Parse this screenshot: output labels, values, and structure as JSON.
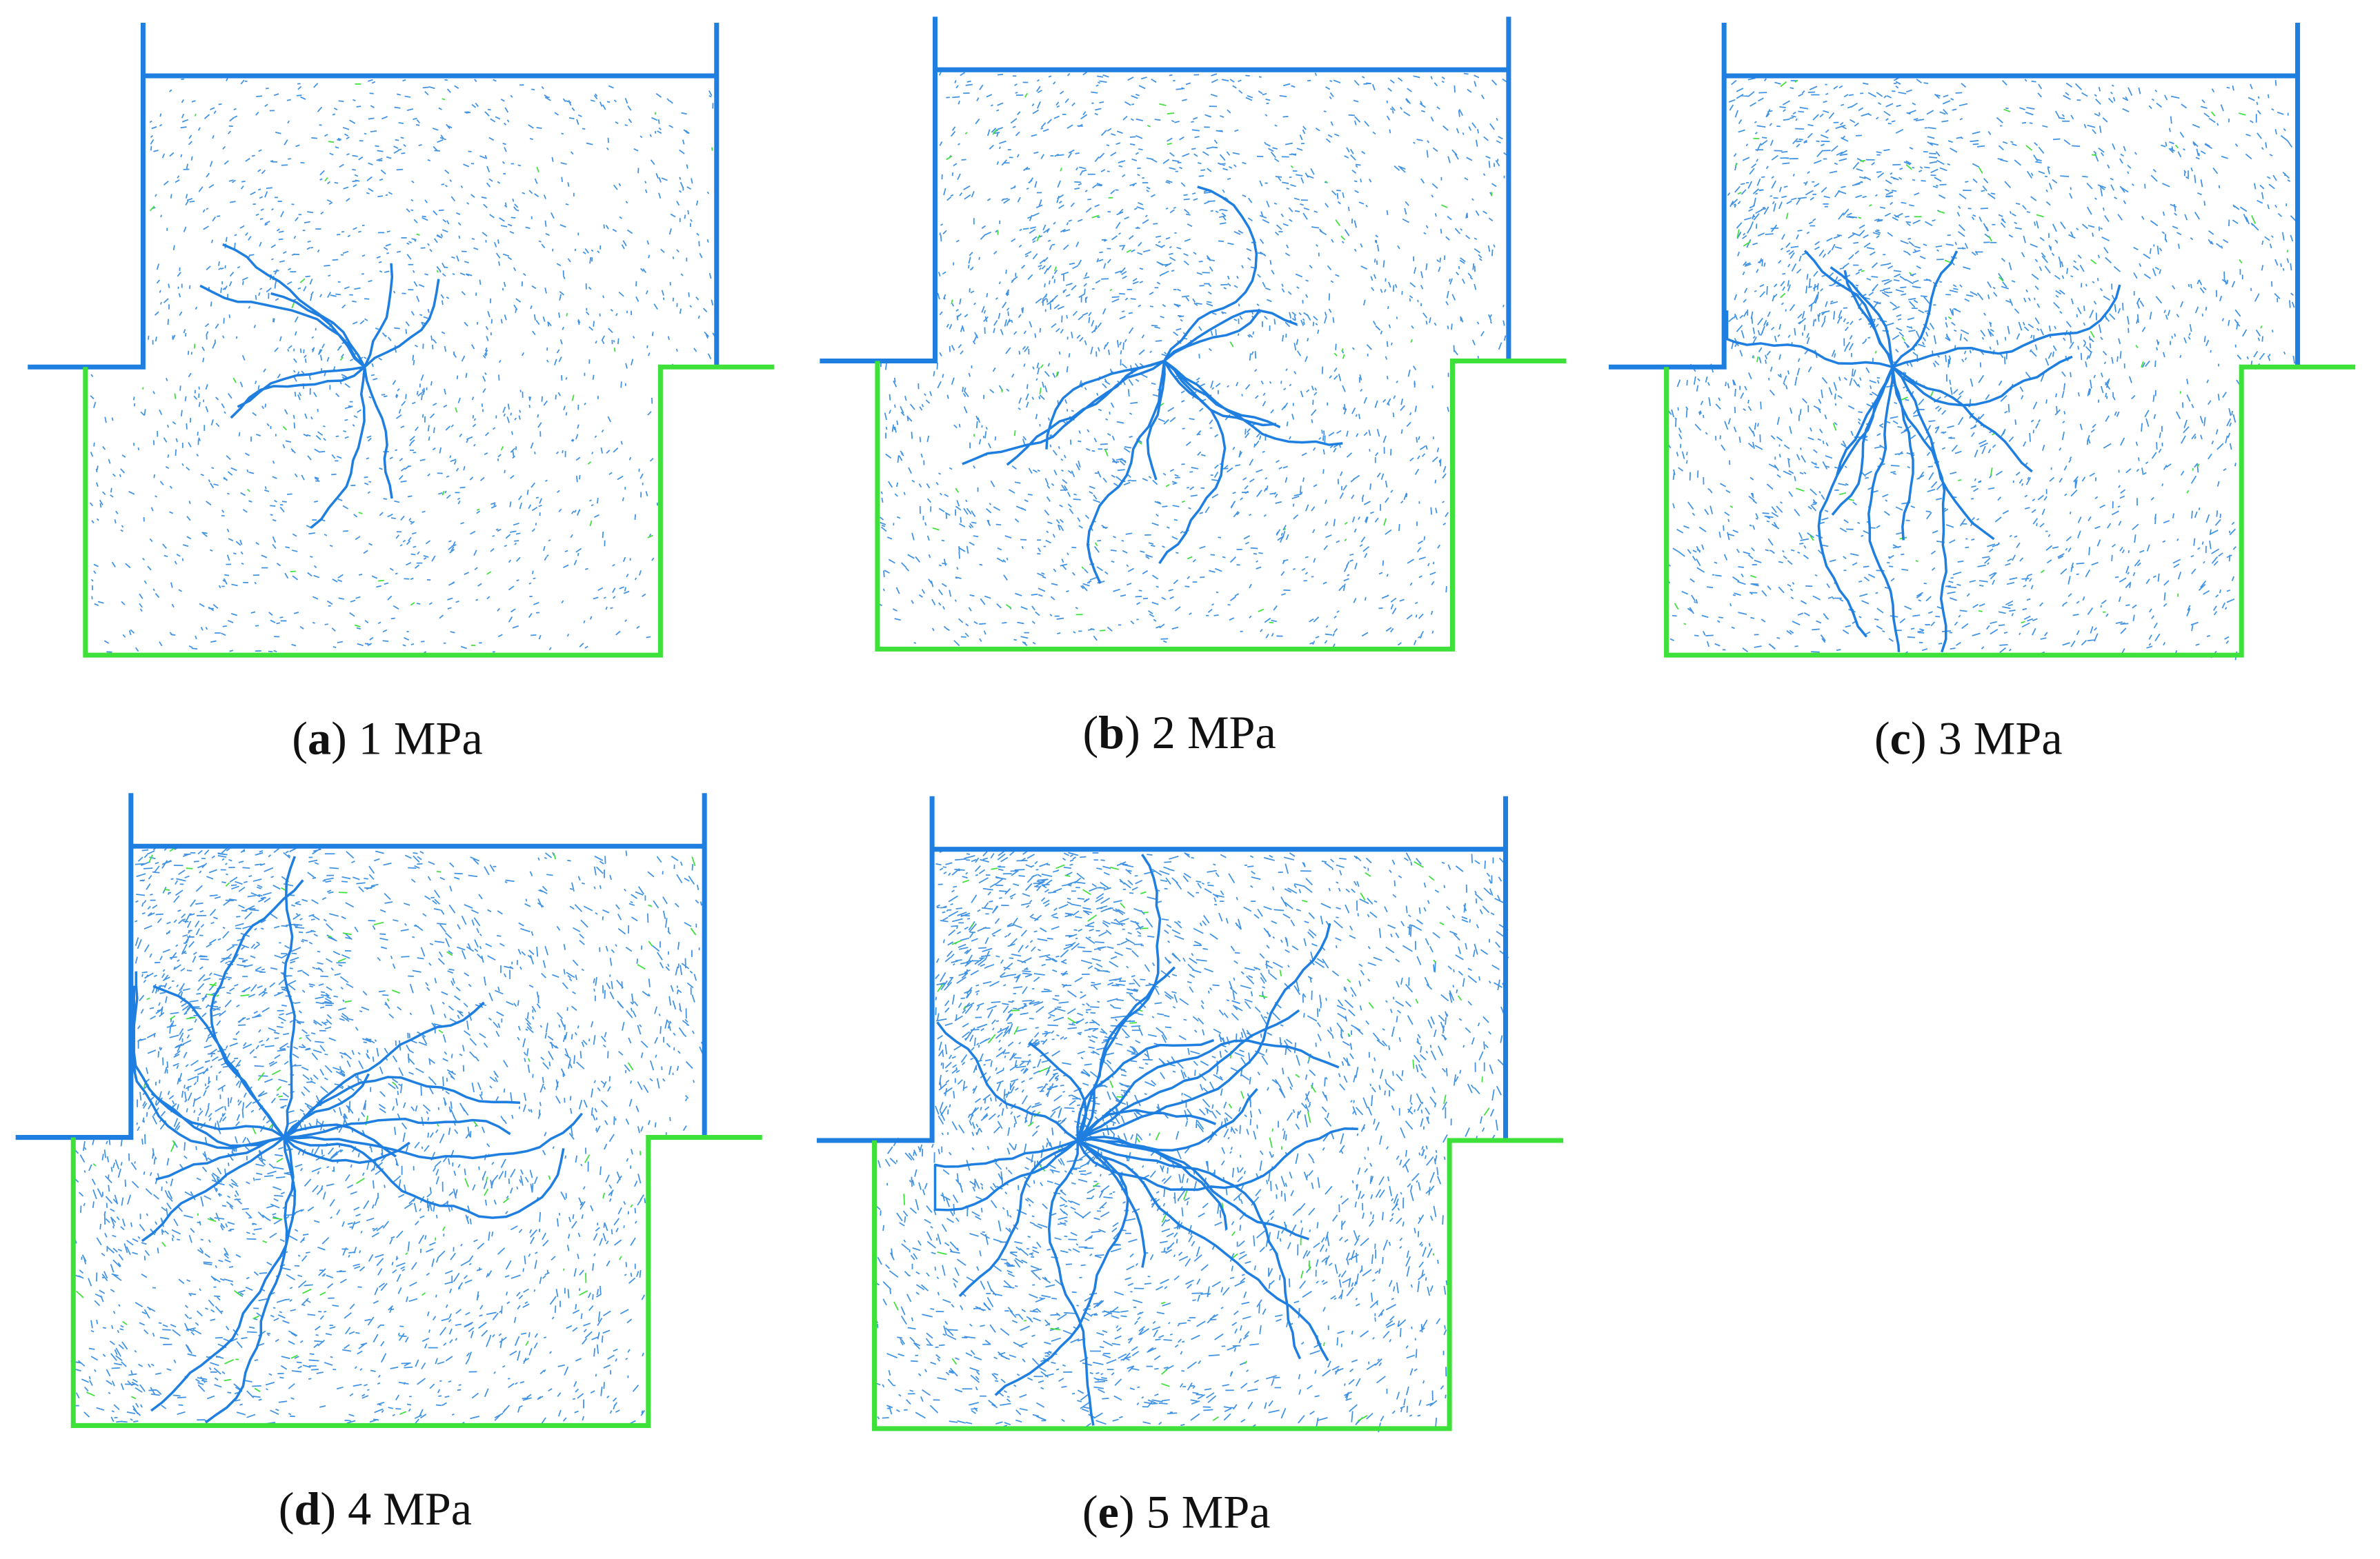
{
  "figure": {
    "panels": [
      {
        "caption": {
          "open": "(",
          "letter": "a",
          "rest": ") 1 MPa"
        }
      },
      {
        "caption": {
          "open": "(",
          "letter": "b",
          "rest": ") 2 MPa"
        }
      },
      {
        "caption": {
          "open": "(",
          "letter": "c",
          "rest": ") 3 MPa"
        }
      },
      {
        "caption": {
          "open": "(",
          "letter": "d",
          "rest": ") 4 MPa"
        }
      },
      {
        "caption": {
          "open": "(",
          "letter": "e",
          "rest": ") 5 MPa"
        }
      }
    ]
  }
}
